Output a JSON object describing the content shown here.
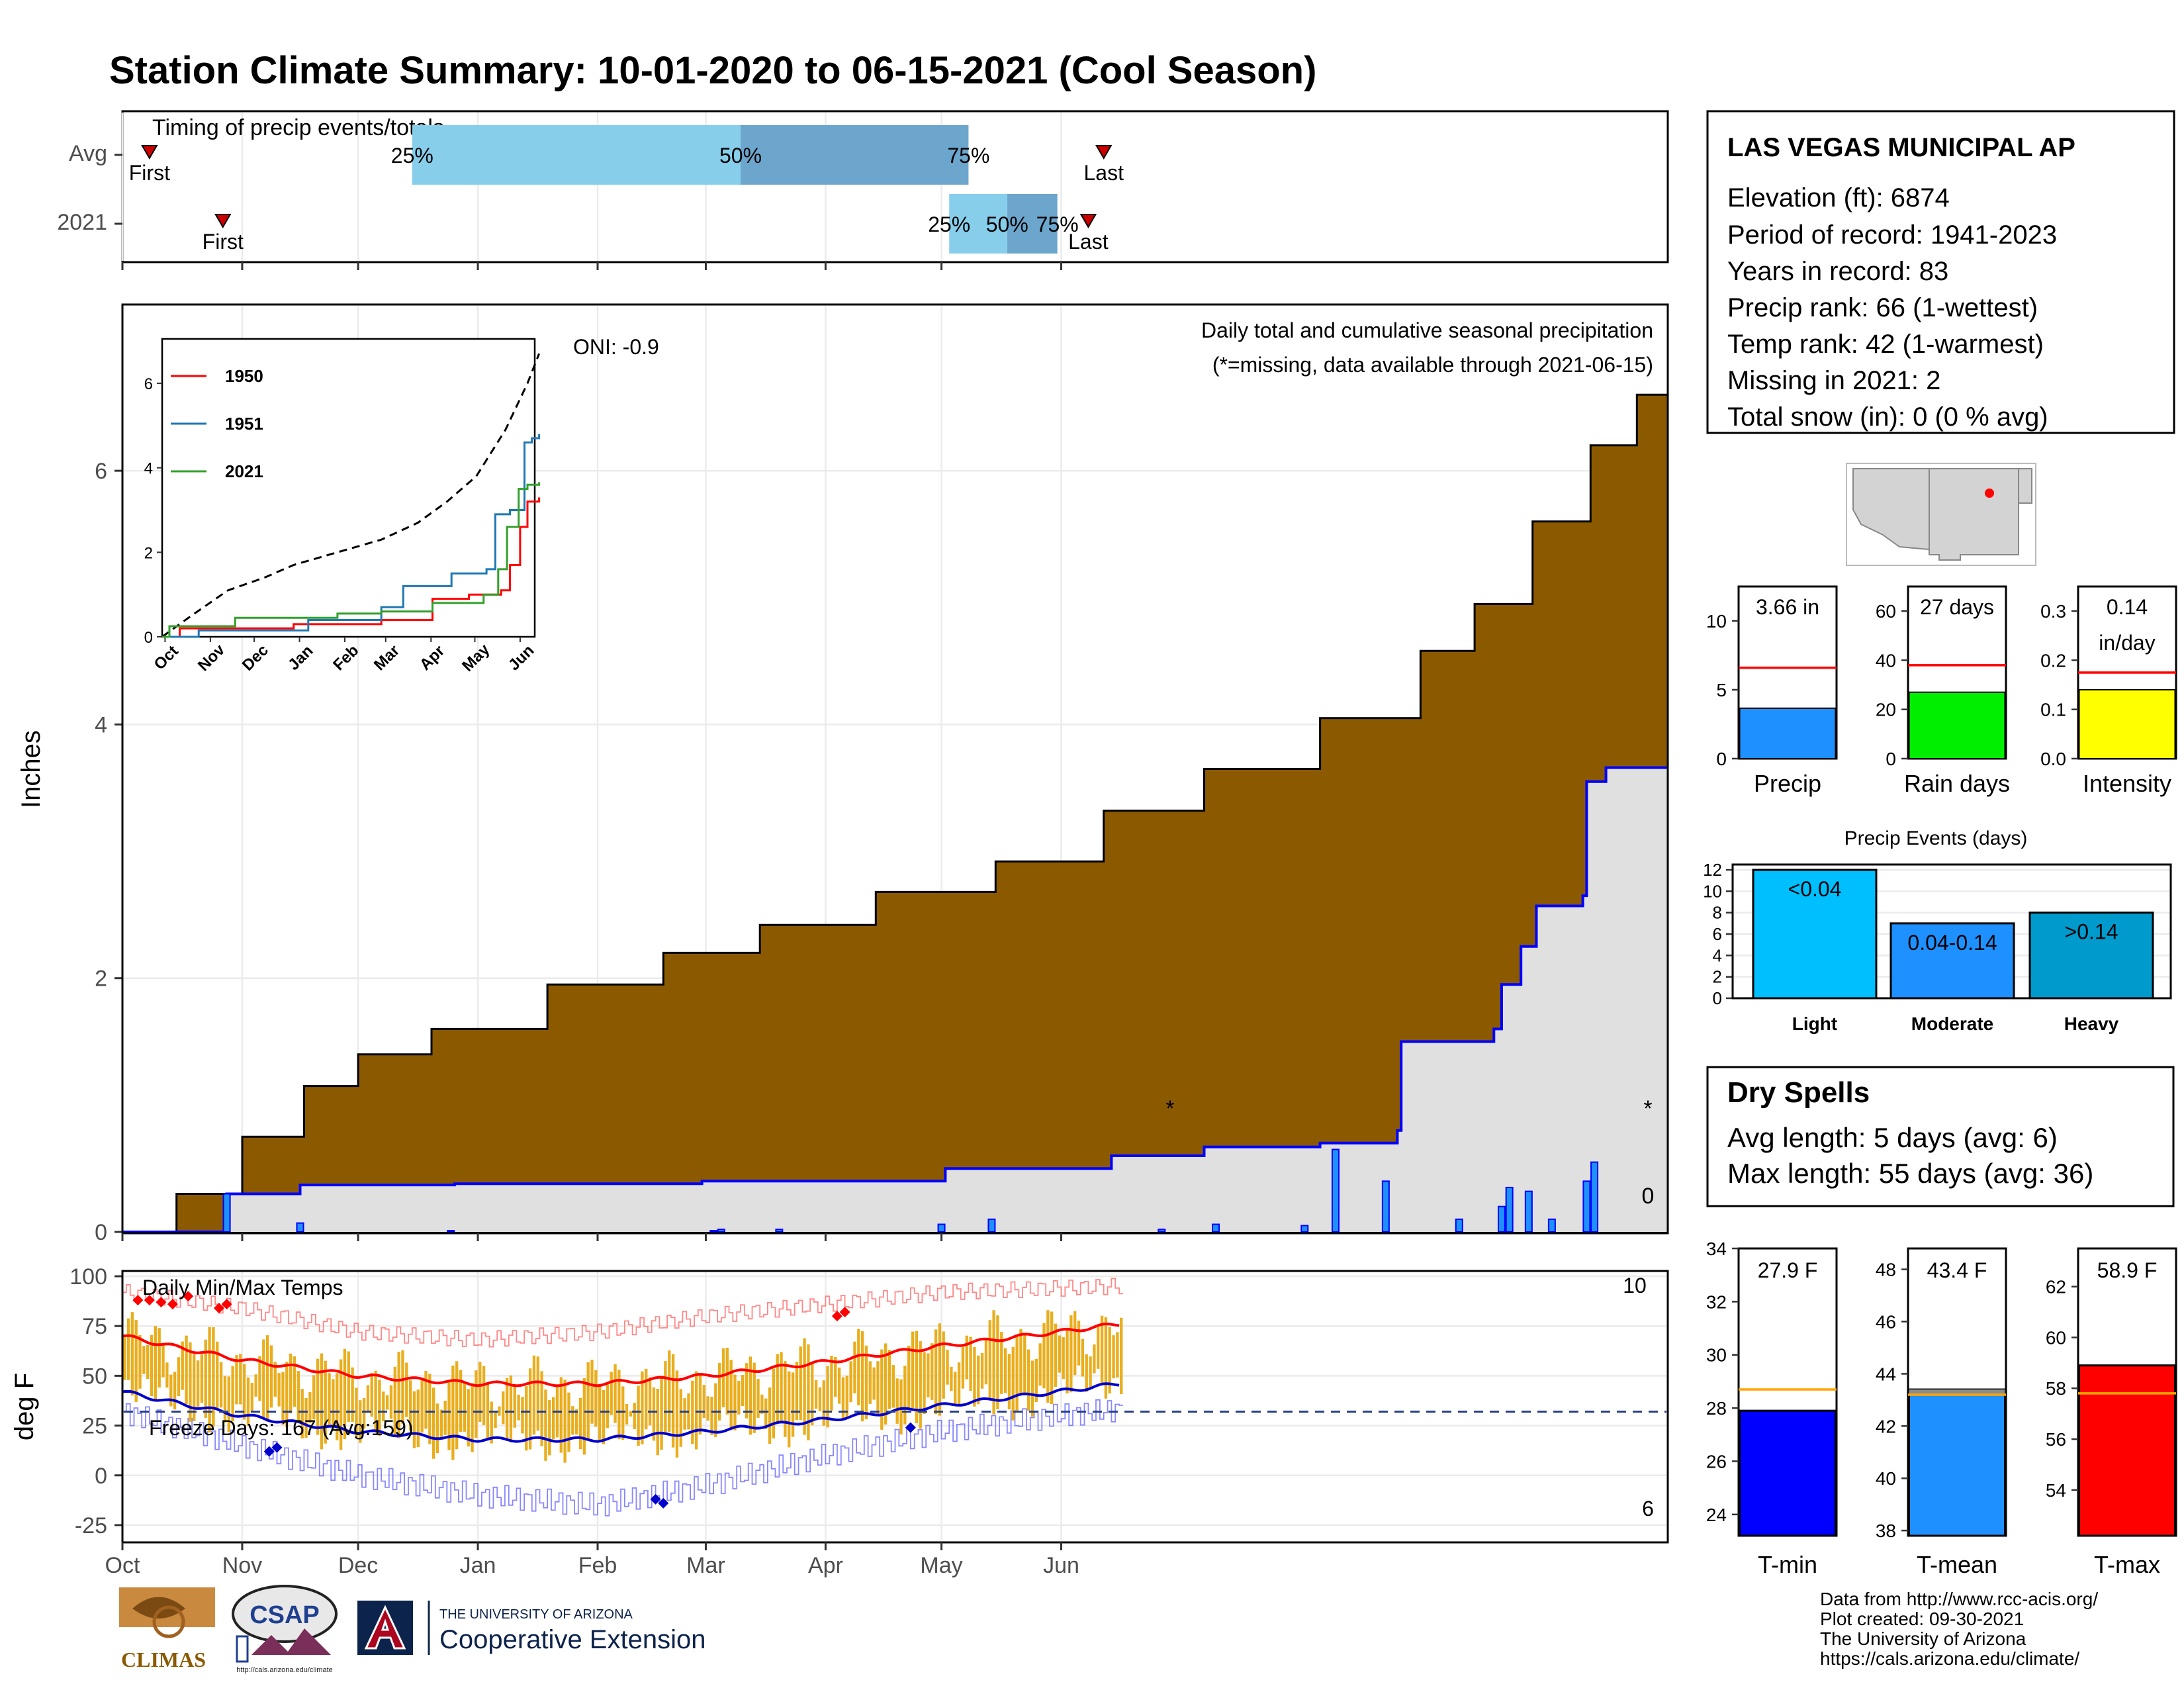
{
  "title": "Station Climate Summary: 10-01-2020 to 06-15-2021 (Cool Season)",
  "colors": {
    "title": "#27408b",
    "precip_fill": "#8b5a00",
    "avg_fill": "#e0e0e0",
    "precip_line": "#0000ff",
    "dry": "#a52a2a",
    "temp_bar": "#e9ae1e",
    "max_line": "#ff0000",
    "min_line": "#0000cd"
  },
  "timing": {
    "label": "Timing of precip events/totals",
    "rows": [
      "Avg",
      "2021"
    ],
    "first_label": "First",
    "last_label": "Last",
    "pct_labels": [
      "25%",
      "50%",
      "75%"
    ]
  },
  "station": {
    "name": "LAS VEGAS MUNICIPAL AP",
    "lines": [
      "Elevation (ft): 6874",
      "Period of record: 1941-2023",
      "Years in record: 83",
      "Precip rank: 66 (1-wettest)",
      "Temp rank: 42 (1-warmest)",
      "Missing in 2021: 2",
      "Total snow (in): 0 (0 % avg)"
    ]
  },
  "precip_panel": {
    "ylabel": "Inches",
    "oni": "ONI: -0.9",
    "caption": "Daily total and cumulative seasonal precipitation",
    "missing_note": "(*=missing, data available through 2021-06-15)",
    "zero_count": "0",
    "missing_marker": "*"
  },
  "inset": {
    "x_labels": [
      "Oct",
      "Nov",
      "Dec",
      "Jan",
      "Feb",
      "Mar",
      "Apr",
      "May",
      "Jun"
    ],
    "y_ticks": [
      "0",
      "2",
      "4",
      "6"
    ],
    "legend": [
      "1950",
      "1951",
      "2021"
    ],
    "legend_colors": [
      "#ff0000",
      "#1f78b4",
      "#33a02c"
    ]
  },
  "gauges": [
    {
      "value_label": "3.66 in",
      "name": "Precip",
      "ticks": [
        "0",
        "5",
        "10"
      ],
      "color": "#1e90ff"
    },
    {
      "value_label": "27 days",
      "name": "Rain days",
      "ticks": [
        "0",
        "20",
        "40",
        "60"
      ],
      "color": "#00ee00"
    },
    {
      "value_label": "0.14",
      "value_label2": "in/day",
      "name": "Intensity",
      "ticks": [
        "0.0",
        "0.1",
        "0.2",
        "0.3"
      ],
      "color": "#ffff00"
    }
  ],
  "events": {
    "title": "Precip Events (days)",
    "y_ticks": [
      "0",
      "2",
      "4",
      "6",
      "8",
      "10",
      "12"
    ]
  },
  "dry_spells": {
    "title": "Dry Spells",
    "avg_length": "Avg length: 5 days (avg: 6)",
    "max_length": "Max length: 55 days (avg: 36)"
  },
  "temp_panel": {
    "ylabel": "deg F",
    "title": "Daily Min/Max Temps",
    "freeze": "Freeze Days: 167 (Avg:159)",
    "record_high_count": "10",
    "record_low_count": "6",
    "y_ticks": [
      "-25",
      "0",
      "25",
      "50",
      "75",
      "100"
    ]
  },
  "x_months": [
    "Oct",
    "Nov",
    "Dec",
    "Jan",
    "Feb",
    "Mar",
    "Apr",
    "May",
    "Jun"
  ],
  "temp_gauges": [
    {
      "value_label": "27.9 F",
      "name": "T-min",
      "ticks": [
        "24",
        "26",
        "28",
        "30",
        "32",
        "34"
      ],
      "color": "#0000ff"
    },
    {
      "value_label": "43.4 F",
      "name": "T-mean",
      "ticks": [
        "38",
        "40",
        "42",
        "44",
        "46",
        "48"
      ],
      "color": "#1e90ff"
    },
    {
      "value_label": "58.9 F",
      "name": "T-max",
      "ticks": [
        "54",
        "56",
        "58",
        "60",
        "62"
      ],
      "color": "#ff0000"
    }
  ],
  "footer": {
    "lines": [
      "Data from http://www.rcc-acis.org/",
      "Plot created: 09-30-2021",
      "The University of Arizona",
      "https://cals.arizona.edu/climate/"
    ],
    "climas": "CLIMAS",
    "csap": "CSAP",
    "csap_url": "http://cals.arizona.edu/climate",
    "ua_small": "THE UNIVERSITY OF ARIZONA",
    "ua_big": "Cooperative Extension"
  },
  "chart_data": [
    {
      "type": "bar",
      "name": "timing",
      "rows": [
        "Avg",
        "2021"
      ],
      "Avg": {
        "first": "2020-10-08",
        "p25": "2020-12-15",
        "p50": "2021-03-10",
        "p75": "2021-05-08",
        "last": "2021-06-12"
      },
      "2021": {
        "first": "2020-10-27",
        "p25": "2021-05-03",
        "p50": "2021-05-18",
        "p75": "2021-05-31",
        "last": "2021-06-08"
      }
    },
    {
      "type": "area",
      "name": "precipitation",
      "ylabel": "Inches",
      "ylim": [
        0,
        7.3
      ],
      "avg_cumulative": [
        [
          0,
          0
        ],
        [
          14,
          0.3
        ],
        [
          31,
          0.75
        ],
        [
          47,
          1.15
        ],
        [
          61,
          1.4
        ],
        [
          80,
          1.6
        ],
        [
          110,
          1.95
        ],
        [
          140,
          2.2
        ],
        [
          165,
          2.42
        ],
        [
          195,
          2.68
        ],
        [
          226,
          2.92
        ],
        [
          254,
          3.32
        ],
        [
          280,
          3.65
        ],
        [
          310,
          4.05
        ],
        [
          336,
          4.58
        ],
        [
          350,
          4.95
        ],
        [
          365,
          5.6
        ],
        [
          380,
          6.2
        ],
        [
          392,
          6.6
        ],
        [
          400,
          6.65
        ]
      ],
      "season_cumulative_2021": [
        [
          0,
          0
        ],
        [
          26,
          0
        ],
        [
          27,
          0.3
        ],
        [
          45,
          0.3
        ],
        [
          46,
          0.37
        ],
        [
          85,
          0.37
        ],
        [
          86,
          0.38
        ],
        [
          150,
          0.4
        ],
        [
          212,
          0.4
        ],
        [
          213,
          0.5
        ],
        [
          255,
          0.5
        ],
        [
          256,
          0.6
        ],
        [
          280,
          0.67
        ],
        [
          310,
          0.7
        ],
        [
          330,
          0.8
        ],
        [
          331,
          1.5
        ],
        [
          355,
          1.6
        ],
        [
          357,
          1.95
        ],
        [
          362,
          2.25
        ],
        [
          366,
          2.57
        ],
        [
          378,
          2.65
        ],
        [
          379,
          3.55
        ],
        [
          384,
          3.66
        ],
        [
          400,
          3.66
        ]
      ],
      "daily_2021": [
        [
          27,
          0.3
        ],
        [
          46,
          0.07
        ],
        [
          85,
          0.01
        ],
        [
          153,
          0.01
        ],
        [
          155,
          0.02
        ],
        [
          170,
          0.02
        ],
        [
          212,
          0.06
        ],
        [
          225,
          0.1
        ],
        [
          269,
          0.02
        ],
        [
          283,
          0.06
        ],
        [
          306,
          0.05
        ],
        [
          314,
          0.65
        ],
        [
          327,
          0.4
        ],
        [
          346,
          0.1
        ],
        [
          357,
          0.2
        ],
        [
          359,
          0.35
        ],
        [
          364,
          0.32
        ],
        [
          370,
          0.1
        ],
        [
          379,
          0.4
        ],
        [
          381,
          0.55
        ]
      ],
      "x_months": [
        "Oct",
        "Nov",
        "Dec",
        "Jan",
        "Feb",
        "Mar",
        "Apr",
        "May",
        "Jun"
      ]
    },
    {
      "type": "line",
      "name": "temperature",
      "ylabel": "deg F",
      "ylim": [
        -33,
        102
      ],
      "avg_max": [
        [
          0,
          70
        ],
        [
          15,
          64
        ],
        [
          31,
          58
        ],
        [
          61,
          50
        ],
        [
          92,
          46
        ],
        [
          123,
          46
        ],
        [
          151,
          50
        ],
        [
          182,
          57
        ],
        [
          212,
          65
        ],
        [
          242,
          72
        ],
        [
          258,
          76
        ],
        [
          273,
          82
        ]
      ],
      "avg_min": [
        [
          0,
          42
        ],
        [
          15,
          36
        ],
        [
          31,
          30
        ],
        [
          61,
          22
        ],
        [
          92,
          18
        ],
        [
          123,
          18
        ],
        [
          151,
          22
        ],
        [
          182,
          28
        ],
        [
          212,
          35
        ],
        [
          242,
          42
        ],
        [
          258,
          46
        ],
        [
          273,
          50
        ]
      ],
      "record_high": [
        [
          0,
          92
        ],
        [
          31,
          84
        ],
        [
          61,
          72
        ],
        [
          92,
          68
        ],
        [
          123,
          72
        ],
        [
          151,
          80
        ],
        [
          182,
          86
        ],
        [
          212,
          92
        ],
        [
          273,
          96
        ]
      ],
      "record_low": [
        [
          0,
          32
        ],
        [
          31,
          15
        ],
        [
          61,
          0
        ],
        [
          92,
          -10
        ],
        [
          123,
          -15
        ],
        [
          151,
          -5
        ],
        [
          182,
          10
        ],
        [
          212,
          22
        ],
        [
          242,
          30
        ],
        [
          273,
          36
        ]
      ],
      "freeze_threshold": 32
    },
    {
      "type": "bar",
      "name": "gauges",
      "categories": [
        "Precip",
        "Rain days",
        "Intensity"
      ],
      "values": [
        3.66,
        27,
        0.14
      ],
      "averages": [
        6.6,
        38,
        0.175
      ],
      "ylims": [
        [
          0,
          12.5
        ],
        [
          0,
          70
        ],
        [
          0,
          0.35
        ]
      ]
    },
    {
      "type": "bar",
      "name": "precip_events",
      "categories": [
        "Light",
        "Moderate",
        "Heavy"
      ],
      "values": [
        12,
        7,
        8
      ],
      "labels": [
        "<0.04",
        "0.04-0.14",
        ">0.14"
      ],
      "ylim": [
        0,
        12.5
      ]
    },
    {
      "type": "bar",
      "name": "temp_gauges",
      "categories": [
        "T-min",
        "T-mean",
        "T-max"
      ],
      "values": [
        27.9,
        43.4,
        58.9
      ],
      "averages": [
        28.7,
        43.2,
        57.8
      ],
      "ylims": [
        [
          23.2,
          34
        ],
        [
          37.8,
          48.8
        ],
        [
          52.2,
          63.5
        ]
      ]
    }
  ]
}
